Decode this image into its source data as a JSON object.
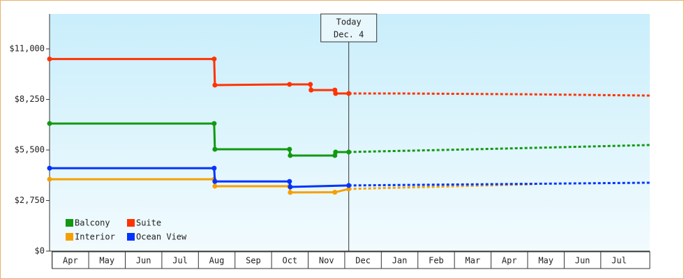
{
  "chart_data": {
    "type": "step-line",
    "categories": [
      "Apr",
      "May",
      "Jun",
      "Jul",
      "Aug",
      "Sep",
      "Oct",
      "Nov",
      "Dec",
      "Jan",
      "Feb",
      "Mar",
      "Apr",
      "May",
      "Jun",
      "Jul"
    ],
    "xlim": [
      -0.07,
      16.34
    ],
    "ylim": [
      0,
      12900
    ],
    "yticks": [
      {
        "value": 0,
        "label": "$0"
      },
      {
        "value": 2750,
        "label": "$2,750"
      },
      {
        "value": 5500,
        "label": "$5,500"
      },
      {
        "value": 8250,
        "label": "$8,250"
      },
      {
        "value": 11000,
        "label": "$11,000"
      }
    ],
    "today": {
      "label": "Today",
      "date": "Dec. 4",
      "x": 8.11
    },
    "series": [
      {
        "name": "Balcony",
        "color": "#119911",
        "x": [
          -0.07,
          4.43,
          4.45,
          6.49,
          6.51,
          7.73,
          7.75,
          8.11
        ],
        "values": [
          6940,
          6940,
          5540,
          5540,
          5200,
          5200,
          5390,
          5390
        ],
        "forecast_x": [
          8.11,
          12.0,
          14.5,
          16.34
        ],
        "forecast_values": [
          5390,
          5560,
          5680,
          5770
        ]
      },
      {
        "name": "Suite",
        "color": "#ff3300",
        "x": [
          -0.07,
          4.43,
          4.45,
          6.49,
          7.06,
          7.08,
          7.73,
          7.75,
          8.11
        ],
        "values": [
          10450,
          10450,
          9030,
          9070,
          9070,
          8760,
          8760,
          8575,
          8575
        ],
        "forecast_x": [
          8.11,
          9.5,
          13.0,
          16.34
        ],
        "forecast_values": [
          8575,
          8575,
          8530,
          8460
        ]
      },
      {
        "name": "Interior",
        "color": "#f5a000",
        "x": [
          -0.07,
          4.43,
          4.45,
          6.49,
          6.51,
          7.73,
          8.11
        ],
        "values": [
          3910,
          3910,
          3530,
          3530,
          3190,
          3200,
          3380
        ],
        "forecast_x": [
          8.11,
          13.2
        ],
        "forecast_values": [
          3380,
          3640
        ]
      },
      {
        "name": "Ocean View",
        "color": "#0033ff",
        "x": [
          -0.07,
          4.43,
          4.45,
          6.49,
          6.51,
          8.11
        ],
        "values": [
          4510,
          4510,
          3790,
          3790,
          3490,
          3570
        ],
        "forecast_x": [
          8.11,
          12.0,
          16.34
        ],
        "forecast_values": [
          3570,
          3640,
          3720
        ]
      }
    ]
  }
}
